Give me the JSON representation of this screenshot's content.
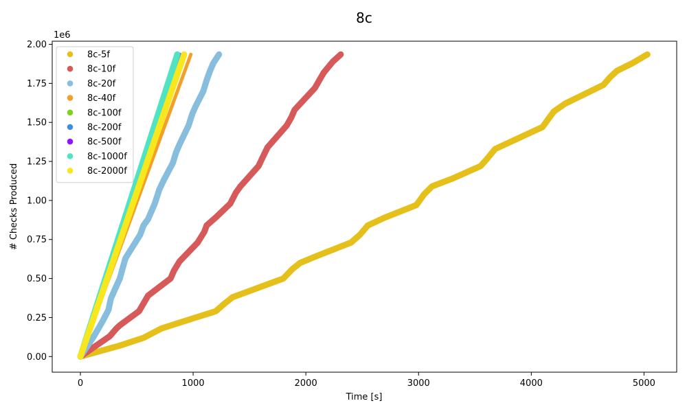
{
  "chart_data": {
    "type": "scatter",
    "title": "8c",
    "xlabel": "Time [s]",
    "ylabel": "# Checks Produced",
    "y_offset_label": "1e6",
    "xlim": [
      -250,
      5290
    ],
    "ylim": [
      -0.1,
      2.02
    ],
    "x_ticks": [
      0,
      1000,
      2000,
      3000,
      4000,
      5000
    ],
    "x_tick_labels": [
      "0",
      "1000",
      "2000",
      "3000",
      "4000",
      "5000"
    ],
    "y_ticks": [
      0,
      0.25,
      0.5,
      0.75,
      1.0,
      1.25,
      1.5,
      1.75,
      2.0
    ],
    "y_tick_labels": [
      "0.00",
      "0.25",
      "0.50",
      "0.75",
      "1.00",
      "1.25",
      "1.50",
      "1.75",
      "2.00"
    ],
    "grid": false,
    "legend_position": "upper-left",
    "series": [
      {
        "name": "8c-5f",
        "color": "#e6c01a",
        "points": [
          [
            0,
            0
          ],
          [
            350,
            0.07
          ],
          [
            560,
            0.12
          ],
          [
            720,
            0.18
          ],
          [
            1000,
            0.245
          ],
          [
            1200,
            0.29
          ],
          [
            1280,
            0.34
          ],
          [
            1350,
            0.38
          ],
          [
            1500,
            0.42
          ],
          [
            1800,
            0.5
          ],
          [
            1880,
            0.56
          ],
          [
            1950,
            0.6
          ],
          [
            2100,
            0.645
          ],
          [
            2400,
            0.73
          ],
          [
            2480,
            0.78
          ],
          [
            2550,
            0.84
          ],
          [
            2700,
            0.89
          ],
          [
            2980,
            0.97
          ],
          [
            3050,
            1.04
          ],
          [
            3120,
            1.09
          ],
          [
            3300,
            1.14
          ],
          [
            3550,
            1.22
          ],
          [
            3600,
            1.26
          ],
          [
            3680,
            1.33
          ],
          [
            3800,
            1.37
          ],
          [
            4100,
            1.47
          ],
          [
            4150,
            1.52
          ],
          [
            4200,
            1.57
          ],
          [
            4300,
            1.62
          ],
          [
            4640,
            1.74
          ],
          [
            4700,
            1.79
          ],
          [
            4760,
            1.83
          ],
          [
            4900,
            1.88
          ],
          [
            5030,
            1.935
          ]
        ]
      },
      {
        "name": "8c-10f",
        "color": "#d65a5a",
        "points": [
          [
            0,
            0
          ],
          [
            120,
            0.06
          ],
          [
            260,
            0.13
          ],
          [
            320,
            0.18
          ],
          [
            350,
            0.2
          ],
          [
            520,
            0.29
          ],
          [
            560,
            0.34
          ],
          [
            600,
            0.39
          ],
          [
            800,
            0.5
          ],
          [
            830,
            0.55
          ],
          [
            880,
            0.61
          ],
          [
            1040,
            0.73
          ],
          [
            1100,
            0.8
          ],
          [
            1120,
            0.84
          ],
          [
            1200,
            0.89
          ],
          [
            1330,
            0.98
          ],
          [
            1380,
            1.05
          ],
          [
            1420,
            1.09
          ],
          [
            1580,
            1.22
          ],
          [
            1620,
            1.28
          ],
          [
            1660,
            1.34
          ],
          [
            1830,
            1.48
          ],
          [
            1870,
            1.53
          ],
          [
            1900,
            1.58
          ],
          [
            2080,
            1.72
          ],
          [
            2120,
            1.77
          ],
          [
            2160,
            1.82
          ],
          [
            2240,
            1.89
          ],
          [
            2310,
            1.935
          ]
        ]
      },
      {
        "name": "8c-20f",
        "color": "#87bddd",
        "points": [
          [
            0,
            0
          ],
          [
            120,
            0.13
          ],
          [
            200,
            0.23
          ],
          [
            250,
            0.3
          ],
          [
            270,
            0.37
          ],
          [
            300,
            0.42
          ],
          [
            350,
            0.5
          ],
          [
            380,
            0.58
          ],
          [
            400,
            0.63
          ],
          [
            530,
            0.78
          ],
          [
            560,
            0.84
          ],
          [
            600,
            0.88
          ],
          [
            660,
            0.98
          ],
          [
            700,
            1.07
          ],
          [
            740,
            1.13
          ],
          [
            820,
            1.24
          ],
          [
            850,
            1.31
          ],
          [
            880,
            1.36
          ],
          [
            960,
            1.48
          ],
          [
            990,
            1.55
          ],
          [
            1020,
            1.6
          ],
          [
            1090,
            1.7
          ],
          [
            1120,
            1.77
          ],
          [
            1150,
            1.83
          ],
          [
            1180,
            1.88
          ],
          [
            1230,
            1.935
          ]
        ]
      },
      {
        "name": "8c-40f",
        "color": "#f2a02a",
        "points": [
          [
            0,
            0
          ],
          [
            980,
            1.935
          ]
        ]
      },
      {
        "name": "8c-100f",
        "color": "#7ed321",
        "points": [
          [
            0,
            0
          ],
          [
            880,
            1.935
          ]
        ]
      },
      {
        "name": "8c-200f",
        "color": "#3f8ee0",
        "points": [
          [
            0,
            0
          ],
          [
            880,
            1.935
          ]
        ]
      },
      {
        "name": "8c-500f",
        "color": "#9013fe",
        "points": [
          [
            0,
            0
          ],
          [
            880,
            1.935
          ]
        ]
      },
      {
        "name": "8c-1000f",
        "color": "#50e3c2",
        "points": [
          [
            0,
            0
          ],
          [
            860,
            1.935
          ]
        ]
      },
      {
        "name": "8c-2000f",
        "color": "#f8e71c",
        "points": [
          [
            0,
            0
          ],
          [
            920,
            1.935
          ]
        ]
      }
    ]
  }
}
